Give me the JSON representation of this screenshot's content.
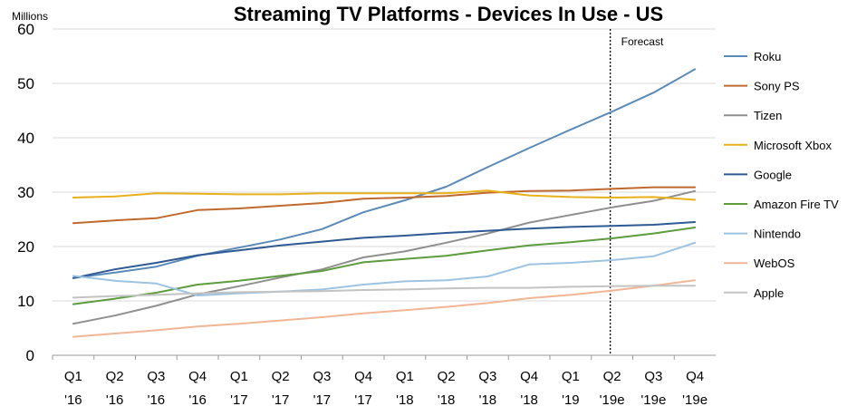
{
  "chart_data": {
    "type": "line",
    "title": "Streaming TV Platforms - Devices In Use - US",
    "unit_label": "Millions",
    "ylim": [
      0,
      60
    ],
    "yticks": [
      0,
      10,
      20,
      30,
      40,
      50,
      60
    ],
    "grid": "horizontal",
    "legend_position": "right",
    "categories": [
      {
        "q": "Q1",
        "y": "'16"
      },
      {
        "q": "Q2",
        "y": "'16"
      },
      {
        "q": "Q3",
        "y": "'16"
      },
      {
        "q": "Q4",
        "y": "'16"
      },
      {
        "q": "Q1",
        "y": "'17"
      },
      {
        "q": "Q2",
        "y": "'17"
      },
      {
        "q": "Q3",
        "y": "'17"
      },
      {
        "q": "Q4",
        "y": "'17"
      },
      {
        "q": "Q1",
        "y": "'18"
      },
      {
        "q": "Q2",
        "y": "'18"
      },
      {
        "q": "Q3",
        "y": "'18"
      },
      {
        "q": "Q4",
        "y": "'18"
      },
      {
        "q": "Q1",
        "y": "'19"
      },
      {
        "q": "Q2",
        "y": "'19e"
      },
      {
        "q": "Q3",
        "y": "'19e"
      },
      {
        "q": "Q4",
        "y": "'19e"
      }
    ],
    "forecast_label": "Forecast",
    "forecast_after_index": 13,
    "series": [
      {
        "name": "Roku",
        "color": "#5b8ab8",
        "values": [
          14.2,
          15.2,
          16.3,
          18.3,
          19.8,
          21.3,
          23.2,
          26.3,
          28.5,
          31.0,
          34.6,
          38.1,
          41.5,
          44.8,
          48.3,
          52.6
        ]
      },
      {
        "name": "Sony PS",
        "color": "#c0692f",
        "values": [
          24.3,
          24.8,
          25.2,
          26.7,
          27.0,
          27.5,
          28.0,
          28.8,
          29.0,
          29.3,
          29.9,
          30.2,
          30.3,
          30.6,
          30.9,
          30.9
        ]
      },
      {
        "name": "Tizen",
        "color": "#8f8f8f",
        "values": [
          5.8,
          7.3,
          9.1,
          11.2,
          12.7,
          14.3,
          15.8,
          18.0,
          19.1,
          20.7,
          22.4,
          24.4,
          25.8,
          27.2,
          28.4,
          30.2
        ]
      },
      {
        "name": "Microsoft Xbox",
        "color": "#e8b01a",
        "values": [
          29.0,
          29.2,
          29.8,
          29.7,
          29.6,
          29.6,
          29.8,
          29.8,
          29.8,
          29.8,
          30.3,
          29.4,
          29.1,
          29.0,
          29.1,
          28.6
        ]
      },
      {
        "name": "Google",
        "color": "#2f5a93",
        "values": [
          14.2,
          15.8,
          17.0,
          18.4,
          19.3,
          20.2,
          20.9,
          21.6,
          22.0,
          22.5,
          22.9,
          23.3,
          23.6,
          23.8,
          24.0,
          24.5
        ]
      },
      {
        "name": "Amazon Fire TV",
        "color": "#5d9c3f",
        "values": [
          9.4,
          10.4,
          11.5,
          13.0,
          13.7,
          14.6,
          15.5,
          17.1,
          17.7,
          18.3,
          19.3,
          20.2,
          20.8,
          21.5,
          22.4,
          23.5
        ]
      },
      {
        "name": "Nintendo",
        "color": "#9dc3e2",
        "values": [
          14.6,
          13.7,
          13.2,
          11.0,
          11.4,
          11.7,
          12.1,
          13.0,
          13.6,
          13.8,
          14.5,
          16.7,
          17.0,
          17.5,
          18.2,
          20.7
        ]
      },
      {
        "name": "WebOS",
        "color": "#f0b695",
        "values": [
          3.4,
          4.0,
          4.6,
          5.3,
          5.8,
          6.4,
          7.0,
          7.7,
          8.3,
          8.9,
          9.6,
          10.5,
          11.1,
          11.9,
          12.8,
          13.8
        ]
      },
      {
        "name": "Apple",
        "color": "#c3c3c3",
        "values": [
          10.6,
          10.9,
          11.1,
          11.4,
          11.6,
          11.7,
          11.8,
          12.0,
          12.1,
          12.3,
          12.4,
          12.4,
          12.6,
          12.7,
          12.8,
          12.8
        ]
      }
    ]
  }
}
